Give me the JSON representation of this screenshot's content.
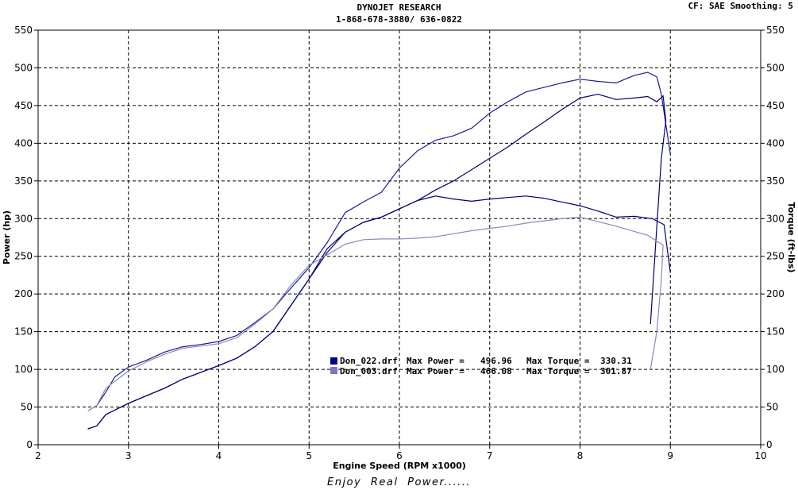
{
  "header": {
    "title": "DYNOJET RESEARCH",
    "phone": "1-868-678-3880/ 636-0822",
    "settings": "CF: SAE  Smoothing: 5"
  },
  "footer": {
    "tagline": "Enjoy  Real  Power......"
  },
  "chart_data": {
    "type": "line",
    "title": "",
    "xlabel": "Engine Speed (RPM x1000)",
    "ylabel_left": "Power (hp)",
    "ylabel_right": "Torque (ft-lbs)",
    "xlim": [
      2,
      10
    ],
    "ylim": [
      0,
      550
    ],
    "xticks": [
      2,
      3,
      4,
      5,
      6,
      7,
      8,
      9,
      10
    ],
    "yticks": [
      0,
      50,
      100,
      150,
      200,
      250,
      300,
      350,
      400,
      450,
      500,
      550
    ],
    "grid": true,
    "legend": {
      "placement": "center-bottom",
      "entries": [
        {
          "file": "Don_022.drf",
          "power_label": "Max Power =",
          "power": "496.96",
          "torque_label": "Max Torque =",
          "torque": "330.31",
          "color": "#000088"
        },
        {
          "file": "Don_003.drf",
          "power_label": "Max Power =",
          "power": "466.08",
          "torque_label": "Max Torque =",
          "torque": "301.87",
          "color": "#7a7ab8"
        }
      ]
    },
    "series": [
      {
        "name": "Don_022.drf Power",
        "color": "#1a1a9a",
        "x": [
          2.58,
          2.65,
          2.75,
          2.85,
          3.0,
          3.2,
          3.4,
          3.6,
          3.8,
          4.0,
          4.2,
          4.4,
          4.6,
          4.8,
          5.0,
          5.2,
          5.4,
          5.6,
          5.8,
          6.0,
          6.2,
          6.4,
          6.6,
          6.8,
          7.0,
          7.2,
          7.4,
          7.6,
          7.8,
          8.0,
          8.2,
          8.4,
          8.6,
          8.75,
          8.85,
          8.9,
          8.95,
          9.0
        ],
        "y": [
          47,
          52,
          70,
          90,
          103,
          112,
          123,
          130,
          133,
          137,
          145,
          162,
          180,
          208,
          235,
          268,
          308,
          322,
          335,
          367,
          390,
          404,
          410,
          420,
          440,
          455,
          468,
          474,
          480,
          485,
          482,
          480,
          490,
          494,
          488,
          465,
          425,
          385
        ]
      },
      {
        "name": "Don_022.drf Torque",
        "color": "#000077",
        "x": [
          2.55,
          2.65,
          2.75,
          3.0,
          3.2,
          3.4,
          3.6,
          3.8,
          4.0,
          4.2,
          4.4,
          4.6,
          4.8,
          5.0,
          5.2,
          5.4,
          5.6,
          5.8,
          6.0,
          6.2,
          6.4,
          6.6,
          6.8,
          7.0,
          7.2,
          7.4,
          7.6,
          7.8,
          8.0,
          8.2,
          8.4,
          8.6,
          8.8,
          8.93,
          9.0
        ],
        "y": [
          21,
          25,
          40,
          55,
          65,
          75,
          87,
          96,
          105,
          115,
          130,
          150,
          185,
          220,
          255,
          282,
          295,
          302,
          313,
          324,
          330,
          326,
          323,
          326,
          328,
          330,
          327,
          322,
          317,
          310,
          302,
          303,
          300,
          292,
          228
        ]
      },
      {
        "name": "Don_003.drf Power",
        "color": "#000077",
        "x": [
          2.55,
          2.65,
          2.75,
          3.0,
          3.2,
          3.4,
          3.6,
          3.8,
          4.0,
          4.2,
          4.4,
          4.6,
          4.8,
          5.0,
          5.2,
          5.4,
          5.6,
          5.8,
          6.0,
          6.2,
          6.4,
          6.6,
          6.8,
          7.0,
          7.2,
          7.4,
          7.6,
          7.8,
          8.0,
          8.2,
          8.4,
          8.6,
          8.75,
          8.85,
          8.92,
          8.95,
          8.9,
          8.85,
          8.78
        ],
        "y": [
          21,
          25,
          40,
          55,
          65,
          75,
          87,
          96,
          105,
          115,
          130,
          150,
          185,
          220,
          260,
          282,
          295,
          302,
          313,
          324,
          338,
          350,
          365,
          380,
          395,
          412,
          428,
          445,
          460,
          465,
          458,
          460,
          462,
          455,
          463,
          430,
          380,
          290,
          160
        ]
      },
      {
        "name": "Don_003.drf Torque",
        "color": "#8a8ab8",
        "x": [
          2.55,
          2.65,
          2.75,
          3.0,
          3.2,
          3.4,
          3.6,
          3.8,
          4.0,
          4.2,
          4.4,
          4.6,
          4.8,
          5.0,
          5.2,
          5.4,
          5.6,
          5.8,
          6.0,
          6.2,
          6.4,
          6.6,
          6.8,
          7.0,
          7.2,
          7.4,
          7.6,
          7.8,
          8.0,
          8.2,
          8.4,
          8.6,
          8.75,
          8.85,
          8.92,
          8.9,
          8.85,
          8.78
        ],
        "y": [
          45,
          52,
          75,
          98,
          110,
          120,
          128,
          131,
          134,
          142,
          160,
          180,
          212,
          238,
          252,
          266,
          272,
          273,
          273,
          274,
          276,
          280,
          284,
          287,
          290,
          294,
          297,
          300,
          302,
          296,
          290,
          283,
          278,
          270,
          265,
          220,
          150,
          100
        ]
      }
    ]
  }
}
